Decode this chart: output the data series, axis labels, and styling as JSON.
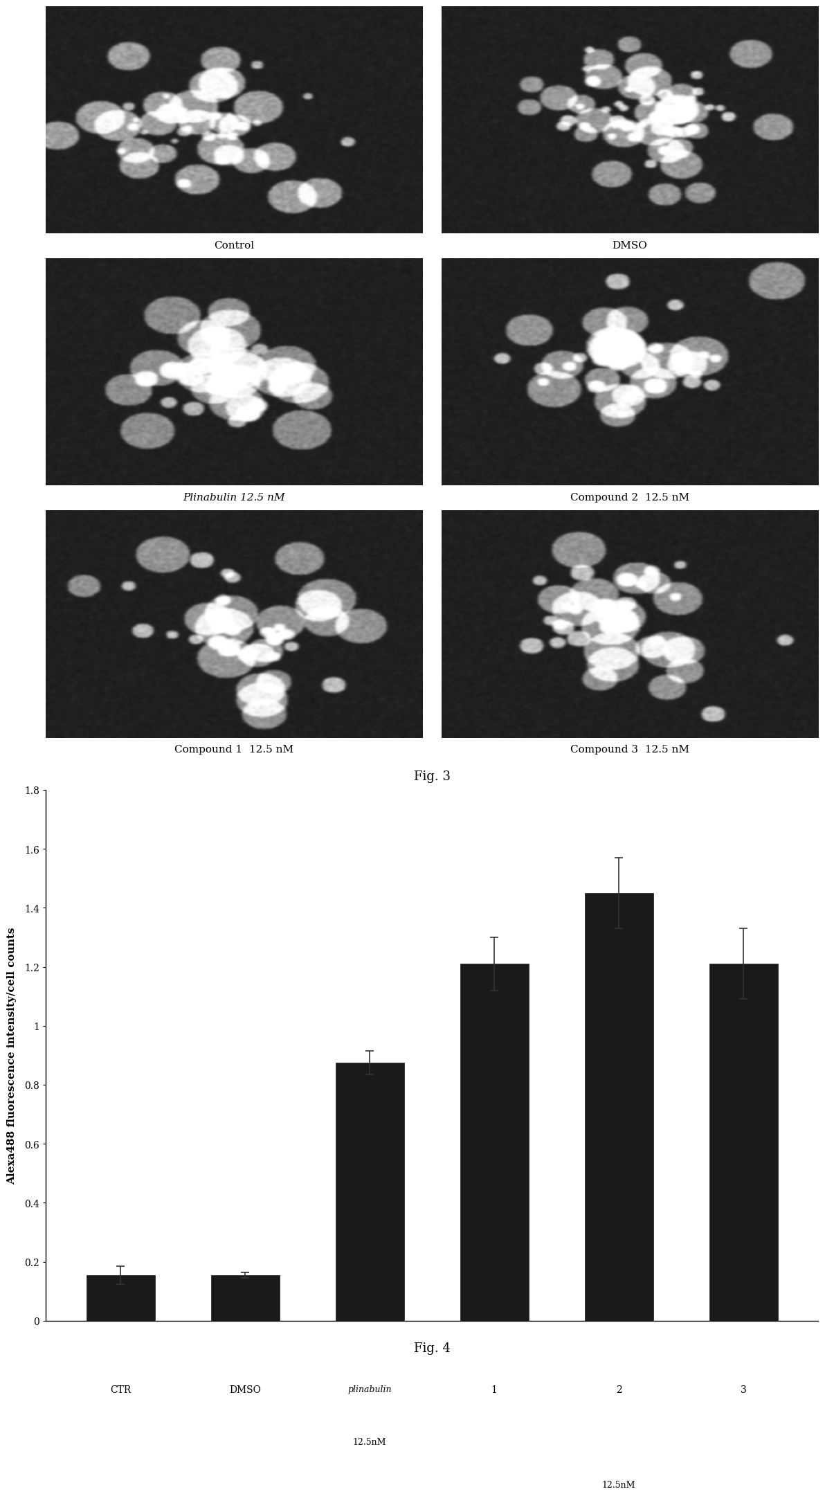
{
  "fig3_labels": [
    [
      "Control",
      "DMSO"
    ],
    [
      "Plinabulin 12.5 nM",
      "Compound 2  12.5 nM"
    ],
    [
      "Compound 1  12.5 nM",
      "Compound 3  12.5 nM"
    ]
  ],
  "fig3_caption": "Fig. 3",
  "fig4_caption": "Fig. 4",
  "bar_values": [
    0.155,
    0.155,
    0.875,
    1.21,
    1.45,
    1.21
  ],
  "bar_errors": [
    0.03,
    0.01,
    0.04,
    0.09,
    0.12,
    0.12
  ],
  "bar_color": "#1a1a1a",
  "bar_labels_line1": [
    "CTR",
    "DMSO",
    "plinabulin",
    "1",
    "2",
    "3"
  ],
  "bar_labels_line2": [
    "",
    "",
    "12.5nM",
    "",
    "",
    ""
  ],
  "bar_group_label": "12.5nM",
  "ylabel": "Alexa488 fluorescence intensity/cell counts",
  "ylim": [
    0,
    1.8
  ],
  "yticks": [
    0,
    0.2,
    0.4,
    0.6,
    0.8,
    1.0,
    1.2,
    1.4,
    1.6,
    1.8
  ],
  "background_color": "#ffffff",
  "fig_bg": "#ffffff",
  "image_bg": "#2a2a2a"
}
